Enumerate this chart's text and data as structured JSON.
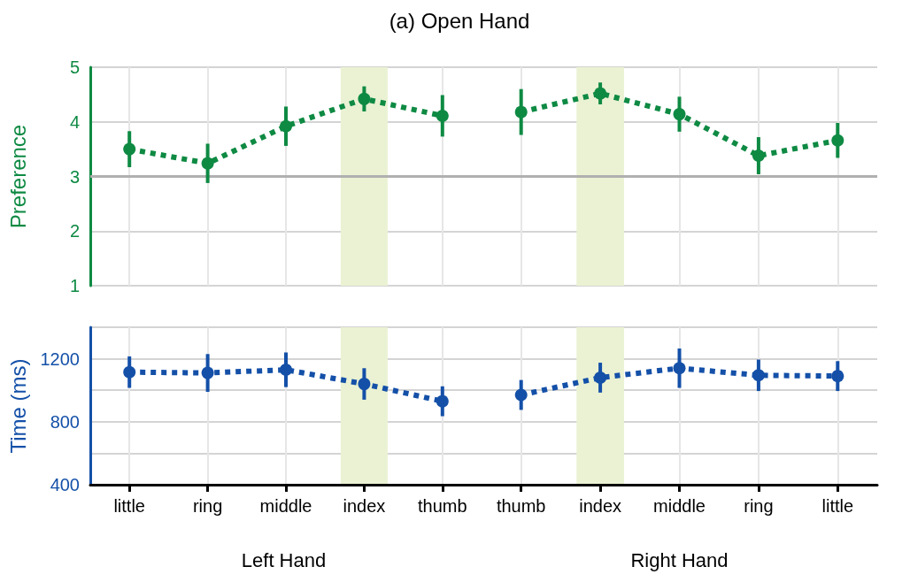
{
  "chart_data": [
    {
      "type": "line",
      "title": "(a) Open Hand",
      "ylabel": "Preference",
      "categories": [
        "little",
        "ring",
        "middle",
        "index",
        "thumb"
      ],
      "series": [
        {
          "color": "#0e8a43",
          "values": [
            3.5,
            3.24,
            3.92,
            4.42,
            4.11
          ],
          "errors": [
            0.33,
            0.36,
            0.36,
            0.23,
            0.38
          ]
        }
      ],
      "ylim": [
        1,
        5
      ],
      "yticks": [
        1,
        2,
        3,
        4,
        5
      ],
      "grid": true,
      "tick_labels": "y",
      "marker": "circle",
      "line_style": "dotted",
      "ref_lines": [
        {
          "axis": "y",
          "value": 3,
          "color": "#b0b0b0"
        }
      ],
      "bands": [
        {
          "axis": "x",
          "from": "index",
          "to": "index",
          "color": "#eaf2d3"
        }
      ]
    },
    {
      "type": "line",
      "categories": [
        "thumb",
        "index",
        "middle",
        "ring",
        "little"
      ],
      "series": [
        {
          "color": "#0e8a43",
          "values": [
            4.18,
            4.52,
            4.14,
            3.38,
            3.66
          ],
          "errors": [
            0.42,
            0.2,
            0.32,
            0.34,
            0.32
          ]
        }
      ],
      "ylim": [
        1,
        5
      ],
      "yticks": [
        1,
        2,
        3,
        4,
        5
      ],
      "grid": true,
      "tick_labels": false,
      "marker": "circle",
      "line_style": "dotted",
      "ref_lines": [
        {
          "axis": "y",
          "value": 3,
          "color": "#b0b0b0"
        }
      ],
      "bands": [
        {
          "axis": "x",
          "from": "index",
          "to": "index",
          "color": "#eaf2d3"
        }
      ]
    },
    {
      "type": "line",
      "ylabel": "Time (ms)",
      "categories": [
        "little",
        "ring",
        "middle",
        "index",
        "thumb"
      ],
      "series": [
        {
          "color": "#1450a8",
          "values": [
            1115,
            1110,
            1130,
            1040,
            930
          ],
          "errors": [
            100,
            120,
            110,
            100,
            95
          ]
        }
      ],
      "ylim": [
        400,
        1400
      ],
      "yticks": [
        400,
        {
          "value": 600,
          "label": null
        },
        800,
        {
          "value": 1000,
          "label": null
        },
        1200,
        {
          "value": 1400,
          "label": null
        }
      ],
      "grid": true,
      "marker": "circle",
      "line_style": "dotted",
      "annotations": [
        "Left Hand"
      ],
      "bands": [
        {
          "axis": "x",
          "from": "index",
          "to": "index",
          "color": "#eaf2d3"
        }
      ]
    },
    {
      "type": "line",
      "categories": [
        "thumb",
        "index",
        "middle",
        "ring",
        "little"
      ],
      "series": [
        {
          "color": "#1450a8",
          "values": [
            970,
            1080,
            1140,
            1095,
            1090
          ],
          "errors": [
            95,
            95,
            125,
            100,
            95
          ]
        }
      ],
      "ylim": [
        400,
        1400
      ],
      "yticks": [
        400,
        {
          "value": 600,
          "label": null
        },
        800,
        {
          "value": 1000,
          "label": null
        },
        1200,
        {
          "value": 1400,
          "label": null
        }
      ],
      "grid": true,
      "tick_labels": "x",
      "marker": "circle",
      "line_style": "dotted",
      "annotations": [
        "Right Hand"
      ],
      "bands": [
        {
          "axis": "x",
          "from": "index",
          "to": "index",
          "color": "#eaf2d3"
        }
      ]
    }
  ]
}
